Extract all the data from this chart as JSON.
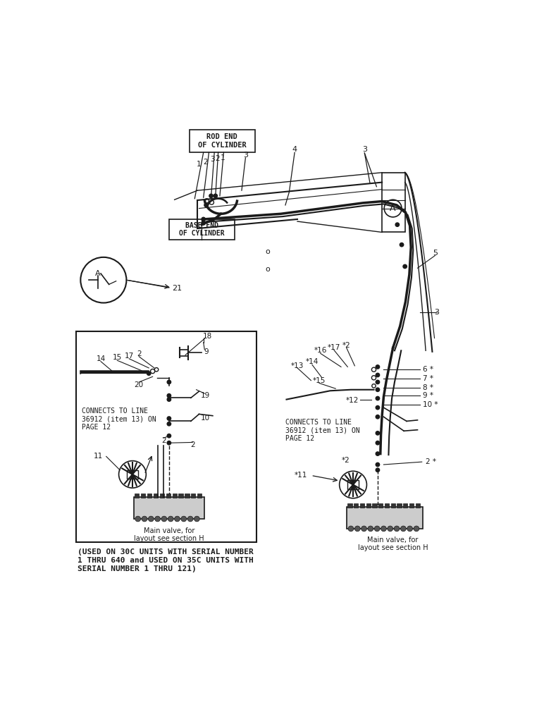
{
  "bg_color": "#ffffff",
  "line_color": "#1a1a1a",
  "text_color": "#1a1a1a",
  "bottom_note": "(USED ON 30C UNITS WITH SERIAL NUMBER\n1 THRU 640 and USED ON 35C UNITS WITH\nSERIAL NUMBER 1 THRU 121)",
  "rod_end_label": "ROD END\nOF CYLINDER",
  "base_end_label": "BASE END\nOF CYLINDER",
  "main_valve_label": "Main valve, for\nlayout see section H",
  "connects_label": "CONNECTS TO LINE\n36912 (item 13) ON\nPAGE 12"
}
